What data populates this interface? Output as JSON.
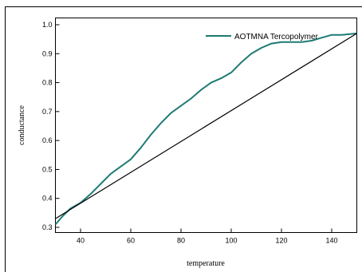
{
  "chart_data": {
    "type": "line",
    "title": "",
    "xlabel": "temperature",
    "ylabel": "conductance",
    "xlim": [
      30,
      150
    ],
    "ylim": [
      0.3,
      1.0
    ],
    "x_ticks": [
      40,
      60,
      80,
      100,
      120,
      140
    ],
    "y_ticks": [
      0.3,
      0.4,
      0.5,
      0.6,
      0.7,
      0.8,
      0.9,
      1.0
    ],
    "grid": false,
    "legend_position": "top-right",
    "series": [
      {
        "name": "AOTMNA Tercopolymer",
        "color": "#1e7a74",
        "x": [
          30,
          33,
          36,
          40,
          44,
          48,
          52,
          56,
          60,
          64,
          68,
          72,
          76,
          80,
          84,
          88,
          92,
          96,
          100,
          104,
          108,
          112,
          116,
          120,
          124,
          128,
          132,
          136,
          140,
          144,
          150
        ],
        "y": [
          0.31,
          0.34,
          0.365,
          0.385,
          0.415,
          0.45,
          0.485,
          0.51,
          0.535,
          0.575,
          0.62,
          0.66,
          0.695,
          0.72,
          0.745,
          0.775,
          0.8,
          0.815,
          0.835,
          0.87,
          0.9,
          0.92,
          0.935,
          0.94,
          0.94,
          0.94,
          0.945,
          0.955,
          0.965,
          0.965,
          0.97
        ]
      },
      {
        "name": "",
        "color": "#000000",
        "x": [
          30,
          150
        ],
        "y": [
          0.33,
          0.97
        ]
      }
    ]
  }
}
